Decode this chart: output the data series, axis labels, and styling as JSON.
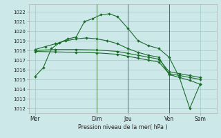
{
  "background_color": "#cce8e8",
  "grid_color": "#99cccc",
  "line_color": "#1a6b2a",
  "vline_color": "#336633",
  "title": "Pression niveau de la mer( hPa )",
  "ylim": [
    1011.5,
    1022.8
  ],
  "yticks": [
    1012,
    1013,
    1014,
    1015,
    1016,
    1017,
    1018,
    1019,
    1020,
    1021,
    1022
  ],
  "xtick_labels": [
    "Mer",
    "Dim",
    "Jeu",
    "Ven",
    "Sam"
  ],
  "xtick_positions": [
    0,
    3,
    4.5,
    6.5,
    8
  ],
  "vline_positions": [
    3,
    4.5,
    6.5
  ],
  "xlim": [
    -0.3,
    8.8
  ],
  "line1_x": [
    0,
    0.4,
    0.8,
    1.2,
    1.6,
    2.0,
    2.4,
    2.8,
    3.2,
    3.6,
    4.0,
    4.5,
    5.0,
    5.5,
    6.0,
    6.5,
    7.0,
    7.5,
    8.0
  ],
  "line1_y": [
    1015.3,
    1016.2,
    1018.2,
    1018.8,
    1019.2,
    1019.4,
    1021.0,
    1021.3,
    1021.7,
    1021.8,
    1021.5,
    1020.3,
    1019.0,
    1018.5,
    1018.2,
    1017.3,
    1015.2,
    1012.0,
    1014.5
  ],
  "line2_x": [
    0,
    0.5,
    1.0,
    1.5,
    2.0,
    2.5,
    3.0,
    3.5,
    4.0,
    4.5,
    5.0,
    5.5,
    6.0,
    6.5,
    7.0,
    7.5,
    8.0
  ],
  "line2_y": [
    1018.1,
    1018.4,
    1018.7,
    1019.0,
    1019.2,
    1019.3,
    1019.2,
    1019.0,
    1018.7,
    1018.2,
    1017.8,
    1017.5,
    1017.3,
    1015.5,
    1015.2,
    1014.9,
    1014.5
  ],
  "line3_x": [
    0,
    1.0,
    2.0,
    3.0,
    4.0,
    4.5,
    5.0,
    5.5,
    6.0,
    6.5,
    7.0,
    7.5,
    8.0
  ],
  "line3_y": [
    1018.0,
    1018.1,
    1018.1,
    1018.05,
    1017.9,
    1017.7,
    1017.5,
    1017.3,
    1017.1,
    1015.8,
    1015.6,
    1015.4,
    1015.2
  ],
  "line4_x": [
    0,
    1.0,
    2.0,
    3.0,
    4.0,
    4.5,
    5.0,
    5.5,
    6.0,
    6.5,
    7.0,
    7.5,
    8.0
  ],
  "line4_y": [
    1017.9,
    1017.85,
    1017.8,
    1017.75,
    1017.6,
    1017.4,
    1017.2,
    1017.0,
    1016.8,
    1015.6,
    1015.4,
    1015.2,
    1015.0
  ]
}
